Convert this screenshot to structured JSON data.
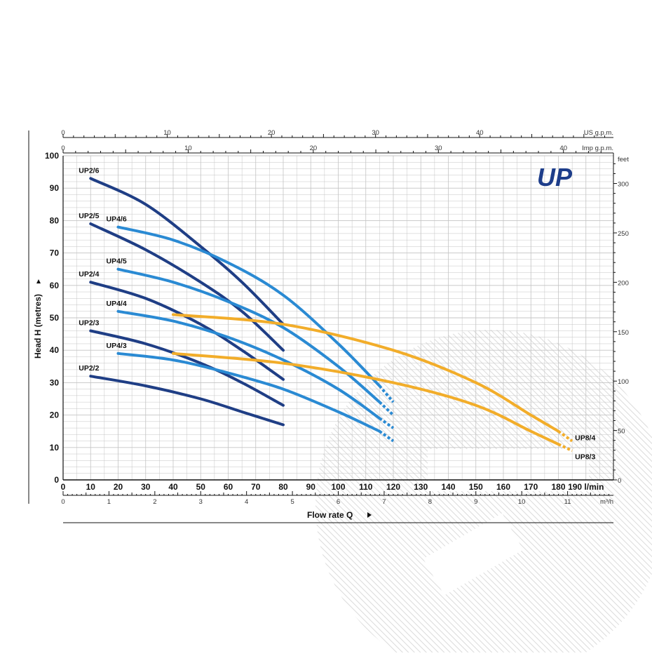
{
  "chart_data": {
    "type": "line",
    "brand_logo": "UP",
    "ylabel": "Head H  (metres)",
    "xlabel": "Flow rate Q",
    "xlim": [
      0,
      200
    ],
    "ylim": [
      0,
      100
    ],
    "x_ticks": [
      0,
      10,
      20,
      30,
      40,
      50,
      60,
      70,
      80,
      90,
      100,
      110,
      120,
      130,
      140,
      150,
      160,
      170,
      180,
      190
    ],
    "x_unit": "l/min",
    "y_ticks": [
      0,
      10,
      20,
      30,
      40,
      50,
      60,
      70,
      80,
      90,
      100
    ],
    "top_axis_us": {
      "unit": "US g.p.m.",
      "ticks": [
        0,
        10,
        20,
        30,
        40
      ]
    },
    "top_axis_imp": {
      "unit": "Imp g.p.m.",
      "ticks": [
        0,
        10,
        20,
        30,
        40
      ]
    },
    "right_axis": {
      "unit": "feet",
      "ticks": [
        0,
        50,
        100,
        150,
        200,
        250,
        300
      ]
    },
    "bottom_axis_m3h": {
      "unit": "m³/h",
      "ticks": [
        0,
        1,
        2,
        3,
        4,
        5,
        6,
        7,
        8,
        9,
        10,
        11
      ]
    },
    "colors": {
      "dark": "#1f3e85",
      "mid": "#2a8ad3",
      "orange": "#f2ad2a",
      "grid": "#c4c4c4"
    },
    "series": [
      {
        "name": "UP2/6",
        "group": "dark",
        "x": [
          10,
          30,
          50,
          65,
          80
        ],
        "y": [
          93,
          85,
          72,
          61,
          48
        ]
      },
      {
        "name": "UP2/5",
        "group": "dark",
        "x": [
          10,
          30,
          50,
          65,
          80
        ],
        "y": [
          79,
          71,
          61,
          52,
          40
        ]
      },
      {
        "name": "UP2/4",
        "group": "dark",
        "x": [
          10,
          30,
          50,
          65,
          80
        ],
        "y": [
          61,
          56,
          48,
          40,
          31
        ]
      },
      {
        "name": "UP2/3",
        "group": "dark",
        "x": [
          10,
          30,
          50,
          65,
          80
        ],
        "y": [
          46,
          42,
          36,
          30,
          23
        ]
      },
      {
        "name": "UP2/2",
        "group": "dark",
        "x": [
          10,
          30,
          50,
          65,
          80
        ],
        "y": [
          32,
          29,
          25,
          21,
          17
        ]
      },
      {
        "name": "UP4/6",
        "group": "mid",
        "x": [
          20,
          40,
          60,
          80,
          100,
          115,
          120
        ],
        "y": [
          78,
          74,
          67,
          57,
          42,
          29,
          24
        ]
      },
      {
        "name": "UP4/5",
        "group": "mid",
        "x": [
          20,
          40,
          60,
          80,
          100,
          115,
          120
        ],
        "y": [
          65,
          61,
          55,
          47,
          35,
          24,
          20
        ]
      },
      {
        "name": "UP4/4",
        "group": "mid",
        "x": [
          20,
          40,
          60,
          80,
          100,
          115,
          120
        ],
        "y": [
          52,
          49,
          44,
          37,
          28,
          19,
          16
        ]
      },
      {
        "name": "UP4/3",
        "group": "mid",
        "x": [
          20,
          40,
          60,
          80,
          100,
          115,
          120
        ],
        "y": [
          39,
          37,
          33,
          28,
          21,
          15,
          12
        ]
      },
      {
        "name": "UP8/4",
        "group": "orange",
        "x": [
          40,
          80,
          120,
          150,
          170,
          180,
          185
        ],
        "y": [
          51,
          48,
          40,
          30,
          20,
          15,
          12
        ]
      },
      {
        "name": "UP8/3",
        "group": "orange",
        "x": [
          40,
          80,
          120,
          150,
          170,
          180,
          185
        ],
        "y": [
          39,
          36,
          30,
          23,
          15,
          11,
          9
        ]
      }
    ]
  }
}
